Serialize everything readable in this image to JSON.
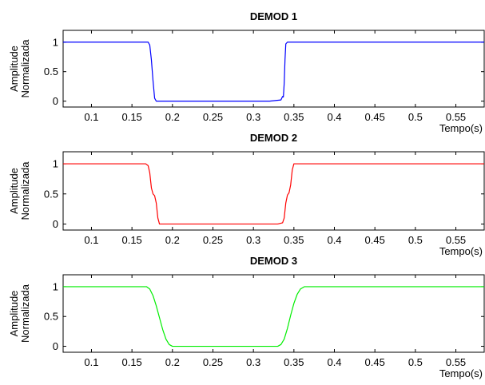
{
  "chart_data": [
    {
      "type": "line",
      "title": "DEMOD 1",
      "xlabel": "Tempo(s)",
      "ylabel": [
        "Amplitude",
        "Normalizada"
      ],
      "xlim": [
        0.065,
        0.585
      ],
      "ylim": [
        -0.1,
        1.2
      ],
      "xticks": [
        0.1,
        0.15,
        0.2,
        0.25,
        0.3,
        0.35,
        0.4,
        0.45,
        0.5,
        0.55
      ],
      "xtick_labels": [
        "0.1",
        "0.15",
        "0.2",
        "0.25",
        "0.3",
        "0.35",
        "0.4",
        "0.45",
        "0.5",
        "0.55"
      ],
      "yticks": [
        0,
        0.5,
        1
      ],
      "ytick_labels": [
        "0",
        "0.5",
        "1"
      ],
      "grid": false,
      "color": "#0000ff",
      "series": [
        {
          "x": [
            0.065,
            0.17,
            0.172,
            0.174,
            0.176,
            0.178,
            0.18,
            0.32,
            0.334,
            0.336,
            0.337,
            0.338,
            0.339,
            0.34,
            0.342,
            0.585
          ],
          "y": [
            1.0,
            1.0,
            0.95,
            0.7,
            0.35,
            0.05,
            0.0,
            0.0,
            0.02,
            0.08,
            0.07,
            0.3,
            0.7,
            0.97,
            1.0,
            1.0
          ]
        }
      ]
    },
    {
      "type": "line",
      "title": "DEMOD 2",
      "xlabel": "Tempo(s)",
      "ylabel": [
        "Amplitude",
        "Normalizada"
      ],
      "xlim": [
        0.065,
        0.585
      ],
      "ylim": [
        -0.1,
        1.2
      ],
      "xticks": [
        0.1,
        0.15,
        0.2,
        0.25,
        0.3,
        0.35,
        0.4,
        0.45,
        0.5,
        0.55
      ],
      "xtick_labels": [
        "0.1",
        "0.15",
        "0.2",
        "0.25",
        "0.3",
        "0.35",
        "0.4",
        "0.45",
        "0.5",
        "0.55"
      ],
      "yticks": [
        0,
        0.5,
        1
      ],
      "ytick_labels": [
        "0",
        "0.5",
        "1"
      ],
      "grid": false,
      "color": "#ff0000",
      "series": [
        {
          "x": [
            0.065,
            0.167,
            0.17,
            0.172,
            0.174,
            0.176,
            0.178,
            0.18,
            0.182,
            0.184,
            0.33,
            0.336,
            0.338,
            0.34,
            0.342,
            0.344,
            0.346,
            0.348,
            0.35,
            0.585
          ],
          "y": [
            1.0,
            1.0,
            0.97,
            0.85,
            0.6,
            0.5,
            0.47,
            0.35,
            0.1,
            0.0,
            0.0,
            0.02,
            0.1,
            0.35,
            0.48,
            0.52,
            0.65,
            0.9,
            1.0,
            1.0
          ]
        }
      ]
    },
    {
      "type": "line",
      "title": "DEMOD 3",
      "xlabel": "Tempo(s)",
      "ylabel": [
        "Amplitude",
        "Normalizada"
      ],
      "xlim": [
        0.065,
        0.585
      ],
      "ylim": [
        -0.1,
        1.2
      ],
      "xticks": [
        0.1,
        0.15,
        0.2,
        0.25,
        0.3,
        0.35,
        0.4,
        0.45,
        0.5,
        0.55
      ],
      "xtick_labels": [
        "0.1",
        "0.15",
        "0.2",
        "0.25",
        "0.3",
        "0.35",
        "0.4",
        "0.45",
        "0.5",
        "0.55"
      ],
      "yticks": [
        0,
        0.5,
        1
      ],
      "ytick_labels": [
        "0",
        "0.5",
        "1"
      ],
      "grid": false,
      "color": "#00ee00",
      "series": [
        {
          "x": [
            0.065,
            0.168,
            0.172,
            0.176,
            0.18,
            0.184,
            0.188,
            0.192,
            0.196,
            0.2,
            0.33,
            0.334,
            0.338,
            0.342,
            0.346,
            0.35,
            0.354,
            0.358,
            0.363,
            0.585
          ],
          "y": [
            1.0,
            1.0,
            0.96,
            0.85,
            0.68,
            0.48,
            0.28,
            0.12,
            0.03,
            0.0,
            0.0,
            0.03,
            0.12,
            0.3,
            0.52,
            0.72,
            0.87,
            0.96,
            1.0,
            1.0
          ]
        }
      ]
    }
  ]
}
